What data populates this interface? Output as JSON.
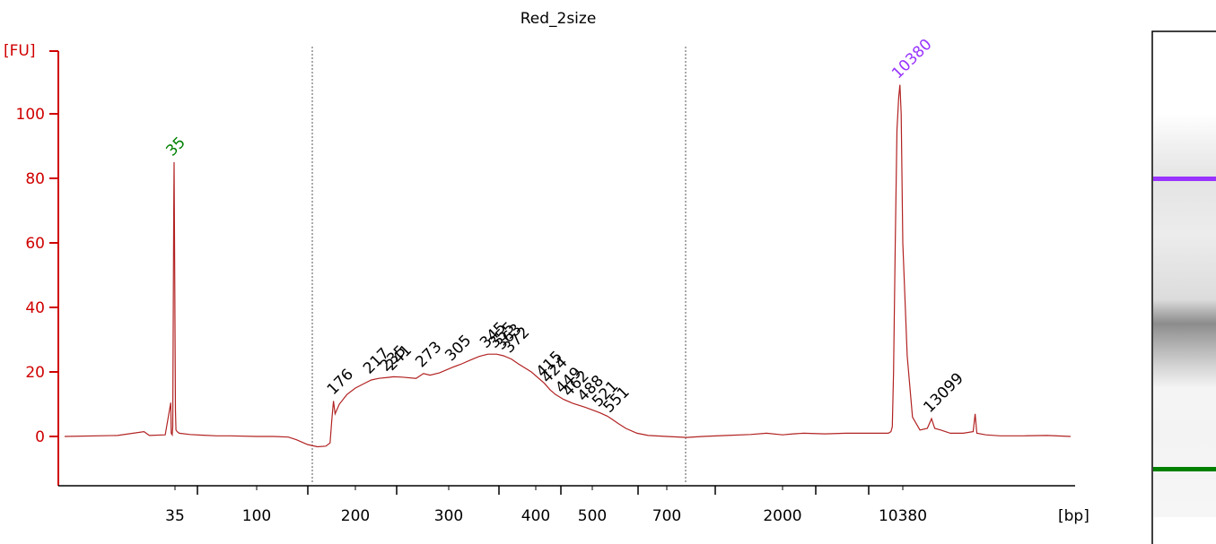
{
  "chart_data": {
    "type": "line",
    "title": "Red_2size",
    "ylabel": "[FU]",
    "xlabel": "[bp]",
    "ylim": [
      -15,
      120
    ],
    "y_ticks": [
      0,
      20,
      40,
      60,
      80,
      100
    ],
    "x_tick_labels": [
      "35",
      "100",
      "200",
      "300",
      "400",
      "500",
      "700",
      "2000",
      "10380"
    ],
    "series": [
      {
        "color": "#b22222",
        "points": [
          [
            15,
            0
          ],
          [
            25,
            0.3
          ],
          [
            30,
            1.5
          ],
          [
            31,
            0.3
          ],
          [
            34,
            0.5
          ],
          [
            35.2,
            10.5
          ],
          [
            35.6,
            1
          ],
          [
            36.5,
            0.5
          ],
          [
            37,
            3
          ],
          [
            37.5,
            40
          ],
          [
            37.9,
            70
          ],
          [
            38.2,
            85
          ],
          [
            38.7,
            50
          ],
          [
            39.2,
            8
          ],
          [
            39.6,
            2
          ],
          [
            40.5,
            1.5
          ],
          [
            42,
            1.0
          ],
          [
            50,
            0.6
          ],
          [
            60,
            0.4
          ],
          [
            70,
            0.2
          ],
          [
            80,
            0.2
          ],
          [
            100,
            0
          ],
          [
            115,
            0
          ],
          [
            128,
            -0.2
          ],
          [
            135,
            -1
          ],
          [
            145,
            -2.5
          ],
          [
            155,
            -3.2
          ],
          [
            165,
            -3
          ],
          [
            170,
            -2
          ],
          [
            172,
            5
          ],
          [
            174,
            11
          ],
          [
            176,
            7
          ],
          [
            181,
            10
          ],
          [
            190,
            13
          ],
          [
            200,
            15
          ],
          [
            210,
            16.5
          ],
          [
            217,
            17.5
          ],
          [
            225,
            18
          ],
          [
            235,
            18.3
          ],
          [
            241,
            18.5
          ],
          [
            250,
            18.4
          ],
          [
            265,
            18
          ],
          [
            273,
            19.5
          ],
          [
            280,
            19
          ],
          [
            290,
            19.7
          ],
          [
            305,
            21.5
          ],
          [
            315,
            22.5
          ],
          [
            325,
            23.7
          ],
          [
            335,
            24.8
          ],
          [
            345,
            25.5
          ],
          [
            355,
            25.5
          ],
          [
            363,
            25
          ],
          [
            372,
            24
          ],
          [
            380,
            22.5
          ],
          [
            395,
            20
          ],
          [
            415,
            16.5
          ],
          [
            425,
            14.5
          ],
          [
            435,
            13
          ],
          [
            449,
            11.5
          ],
          [
            465,
            10.3
          ],
          [
            488,
            9
          ],
          [
            505,
            8
          ],
          [
            521,
            7.3
          ],
          [
            540,
            6.3
          ],
          [
            551,
            5.5
          ],
          [
            570,
            4
          ],
          [
            590,
            2.5
          ],
          [
            620,
            1
          ],
          [
            650,
            0.3
          ],
          [
            700,
            0
          ],
          [
            800,
            -0.3
          ],
          [
            1000,
            0
          ],
          [
            1300,
            0.3
          ],
          [
            1600,
            0.6
          ],
          [
            1800,
            1
          ],
          [
            2000,
            0.5
          ],
          [
            2500,
            0.8
          ],
          [
            3000,
            1
          ],
          [
            4000,
            0.8
          ],
          [
            5000,
            1
          ],
          [
            6000,
            1
          ],
          [
            7000,
            1
          ],
          [
            7600,
            1.5
          ],
          [
            7900,
            3
          ],
          [
            8200,
            20
          ],
          [
            8600,
            60
          ],
          [
            9000,
            95
          ],
          [
            9400,
            105
          ],
          [
            9700,
            109
          ],
          [
            10000,
            100
          ],
          [
            10380,
            60
          ],
          [
            10800,
            25
          ],
          [
            11300,
            6
          ],
          [
            12000,
            2
          ],
          [
            12700,
            2.5
          ],
          [
            13099,
            5.5
          ],
          [
            13600,
            2.5
          ],
          [
            14500,
            2
          ],
          [
            16000,
            1
          ],
          [
            18000,
            1
          ],
          [
            19500,
            1.5
          ],
          [
            19800,
            7
          ],
          [
            20100,
            1
          ],
          [
            22000,
            0.5
          ],
          [
            25000,
            0.2
          ],
          [
            30000,
            0.2
          ],
          [
            35000,
            0.3
          ],
          [
            40000,
            0
          ]
        ]
      }
    ],
    "peak_labels": [
      {
        "label": "35",
        "x": 38.2,
        "y": 85,
        "color": "#008000"
      },
      {
        "label": "176",
        "x": 176,
        "y": 11,
        "color": "#000000"
      },
      {
        "label": "217",
        "x": 217,
        "y": 17.5,
        "color": "#000000"
      },
      {
        "label": "235",
        "x": 235,
        "y": 18.3,
        "color": "#000000"
      },
      {
        "label": "241",
        "x": 241,
        "y": 18.5,
        "color": "#000000"
      },
      {
        "label": "273",
        "x": 273,
        "y": 19.5,
        "color": "#000000"
      },
      {
        "label": "305",
        "x": 305,
        "y": 21.5,
        "color": "#000000"
      },
      {
        "label": "345",
        "x": 345,
        "y": 25.5,
        "color": "#000000"
      },
      {
        "label": "355",
        "x": 355,
        "y": 25.5,
        "color": "#000000"
      },
      {
        "label": "363",
        "x": 363,
        "y": 25,
        "color": "#000000"
      },
      {
        "label": "372",
        "x": 372,
        "y": 24,
        "color": "#000000"
      },
      {
        "label": "415",
        "x": 415,
        "y": 16.5,
        "color": "#000000"
      },
      {
        "label": "424",
        "x": 424,
        "y": 14.7,
        "color": "#000000"
      },
      {
        "label": "449",
        "x": 449,
        "y": 11.5,
        "color": "#000000"
      },
      {
        "label": "462",
        "x": 462,
        "y": 10.5,
        "color": "#000000"
      },
      {
        "label": "488",
        "x": 488,
        "y": 9,
        "color": "#000000"
      },
      {
        "label": "521",
        "x": 521,
        "y": 7.3,
        "color": "#000000"
      },
      {
        "label": "551",
        "x": 551,
        "y": 5.5,
        "color": "#000000"
      },
      {
        "label": "10380",
        "x": 9700,
        "y": 109,
        "color": "#9933ff"
      },
      {
        "label": "13099",
        "x": 13099,
        "y": 5.5,
        "color": "#000000"
      }
    ],
    "vertical_markers_bp": [
      150,
      800
    ],
    "grid": false,
    "legend": "none",
    "gel_bands": [
      {
        "name": "upper-marker",
        "color": "#9933ff"
      },
      {
        "name": "lower-marker",
        "color": "#008000"
      }
    ]
  },
  "colors": {
    "axis": "#d00000",
    "trace": "#b22222",
    "lower_marker": "#008000",
    "upper_marker": "#9933ff"
  }
}
